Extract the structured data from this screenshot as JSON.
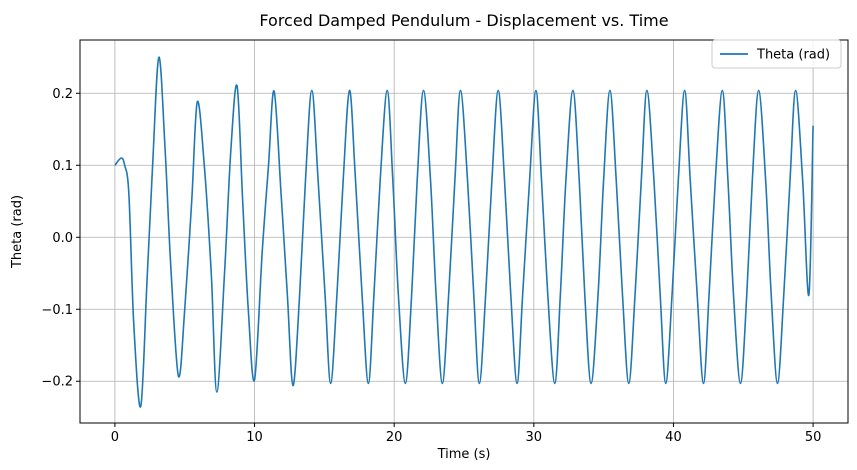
{
  "chart_data": {
    "type": "line",
    "title": "Forced Damped Pendulum - Displacement vs. Time",
    "xlabel": "Time (s)",
    "ylabel": "Theta (rad)",
    "xlim": [
      -2.5,
      52.5
    ],
    "ylim": [
      -0.258,
      0.274
    ],
    "xticks": [
      0,
      10,
      20,
      30,
      40,
      50
    ],
    "xtick_labels": [
      "0",
      "10",
      "20",
      "30",
      "40",
      "50"
    ],
    "yticks": [
      -0.2,
      -0.1,
      0.0,
      0.1,
      0.2
    ],
    "ytick_labels": [
      "−0.2",
      "−0.1",
      "0.0",
      "0.1",
      "0.2"
    ],
    "grid": true,
    "legend_position": "top-right",
    "series": [
      {
        "name": "Theta (rad)",
        "color": "#1f77b4",
        "x": [
          0.0,
          0.45,
          0.7,
          1.0,
          1.35,
          1.85,
          2.3,
          2.7,
          3.15,
          3.6,
          4.0,
          4.55,
          5.0,
          5.5,
          5.9,
          6.4,
          6.9,
          7.3,
          7.85,
          8.3,
          8.75,
          9.15,
          9.55,
          10.0,
          10.55,
          11.0,
          11.4,
          11.9,
          12.35,
          12.75,
          13.2,
          13.65,
          14.1,
          14.55,
          15.05,
          15.45,
          15.9,
          16.35,
          16.8,
          17.2,
          17.7,
          18.15,
          18.55,
          19.0,
          19.5,
          19.9,
          20.3,
          20.8,
          21.25,
          21.65,
          22.1,
          22.6,
          23.0,
          23.45,
          23.9,
          24.35,
          24.75,
          25.25,
          25.7,
          26.1,
          26.55,
          27.0,
          27.45,
          27.9,
          28.35,
          28.8,
          29.2,
          29.7,
          30.15,
          30.55,
          31.0,
          31.5,
          31.9,
          32.3,
          32.8,
          33.25,
          33.65,
          34.1,
          34.6,
          35.0,
          35.45,
          35.9,
          36.35,
          36.8,
          37.25,
          37.7,
          38.1,
          38.6,
          39.05,
          39.45,
          39.9,
          40.35,
          40.8,
          41.2,
          41.7,
          42.15,
          42.55,
          43.0,
          43.5,
          43.9,
          44.3,
          44.8,
          45.25,
          45.65,
          46.1,
          46.6,
          47.0,
          47.45,
          47.9,
          48.35,
          48.75,
          49.25,
          49.7,
          50.0
        ],
        "values": [
          0.1,
          0.11,
          0.1,
          0.06,
          -0.12,
          -0.235,
          -0.06,
          0.1,
          0.25,
          0.12,
          -0.04,
          -0.193,
          -0.1,
          0.05,
          0.188,
          0.1,
          -0.05,
          -0.215,
          -0.05,
          0.12,
          0.21,
          0.05,
          -0.1,
          -0.198,
          -0.02,
          0.1,
          0.203,
          0.06,
          -0.08,
          -0.206,
          -0.09,
          0.08,
          0.204,
          0.08,
          -0.08,
          -0.203,
          -0.08,
          0.08,
          0.204,
          0.09,
          -0.08,
          -0.203,
          -0.08,
          0.08,
          0.204,
          0.08,
          -0.08,
          -0.203,
          -0.08,
          0.08,
          0.204,
          0.08,
          -0.08,
          -0.203,
          -0.08,
          0.08,
          0.204,
          0.08,
          -0.08,
          -0.203,
          -0.08,
          0.08,
          0.204,
          0.08,
          -0.08,
          -0.203,
          -0.08,
          0.08,
          0.204,
          0.08,
          -0.08,
          -0.203,
          -0.08,
          0.08,
          0.204,
          0.08,
          -0.08,
          -0.203,
          -0.08,
          0.08,
          0.204,
          0.08,
          -0.08,
          -0.203,
          -0.08,
          0.08,
          0.204,
          0.08,
          -0.08,
          -0.203,
          -0.08,
          0.08,
          0.204,
          0.08,
          -0.08,
          -0.203,
          -0.08,
          0.08,
          0.204,
          0.08,
          -0.08,
          -0.203,
          -0.08,
          0.08,
          0.204,
          0.08,
          -0.08,
          -0.203,
          -0.08,
          0.08,
          0.204,
          0.08,
          -0.08,
          0.155
        ]
      }
    ]
  }
}
